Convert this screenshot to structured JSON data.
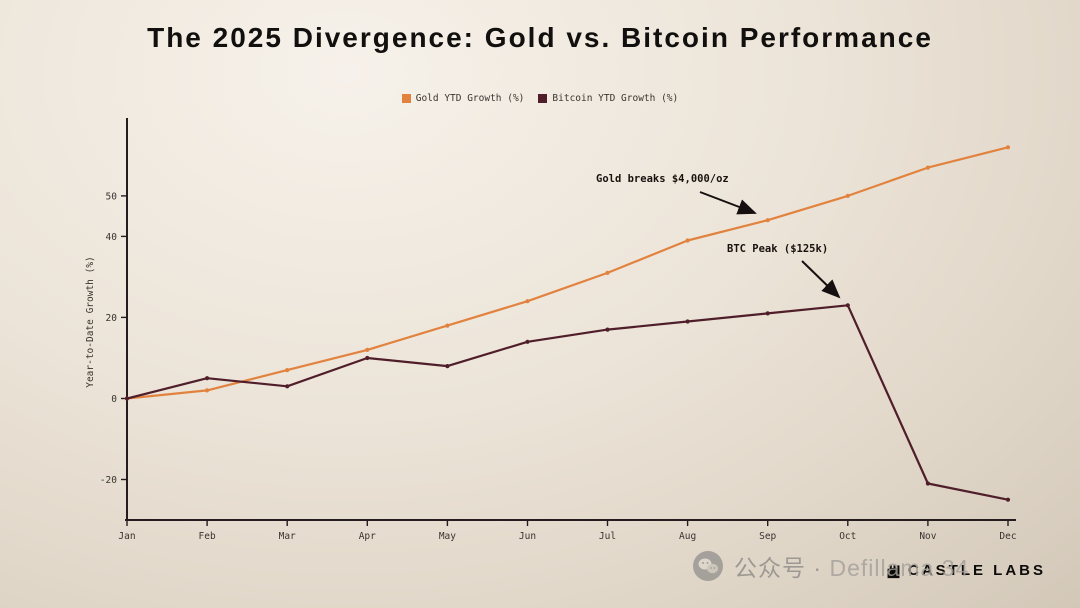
{
  "chart_data": {
    "type": "line",
    "title": "The 2025 Divergence: Gold vs. Bitcoin Performance",
    "ylabel": "Year-to-Date Growth (%)",
    "categories": [
      "Jan",
      "Feb",
      "Mar",
      "Apr",
      "May",
      "Jun",
      "Jul",
      "Aug",
      "Sep",
      "Oct",
      "Nov",
      "Dec"
    ],
    "series": [
      {
        "name": "Gold YTD Growth (%)",
        "color": "#E2823F",
        "values": [
          0,
          2,
          7,
          12,
          18,
          24,
          31,
          39,
          44,
          50,
          57,
          62
        ]
      },
      {
        "name": "Bitcoin YTD Growth (%)",
        "color": "#4F1E2A",
        "values": [
          0,
          5,
          3,
          10,
          8,
          14,
          17,
          19,
          21,
          23,
          -21,
          -25
        ]
      }
    ],
    "yticks": [
      -20,
      0,
      20,
      40,
      50
    ],
    "ylim": [
      -30,
      68
    ],
    "grid": false,
    "legend_position": "top-center",
    "annotations": [
      {
        "text": "Gold breaks $4,000/oz",
        "category_index": 8,
        "value": 44,
        "text_dx": -172,
        "text_dy": -38,
        "arrow": [
          -68,
          -28,
          -13,
          -7
        ]
      },
      {
        "text": "BTC Peak ($125k)",
        "category_index": 9,
        "value": 23,
        "text_dx": -121,
        "text_dy": -53,
        "arrow": [
          -46,
          -44,
          -9,
          -8
        ]
      }
    ]
  },
  "watermark": {
    "wechat_label": "公众号 ·",
    "account": "Defillama 34"
  },
  "brand": {
    "name": "CASTLE LABS"
  }
}
